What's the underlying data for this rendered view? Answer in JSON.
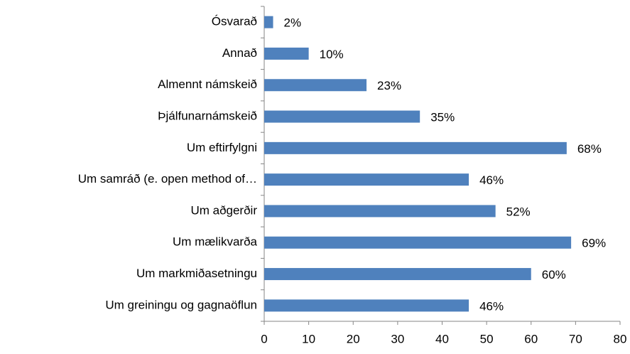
{
  "chart_data": {
    "type": "bar",
    "orientation": "horizontal",
    "categories": [
      "Ósvarað",
      "Annað",
      "Almennt námskeið",
      "Þjálfunarnámskeið",
      "Um eftirfylgni",
      "Um samráð (e. open method of…",
      "Um aðgerðir",
      "Um mælikvarða",
      "Um markmiðasetningu",
      "Um greiningu og gagnaöflun"
    ],
    "values": [
      2,
      10,
      23,
      35,
      68,
      46,
      52,
      69,
      60,
      46
    ],
    "value_labels": [
      "2%",
      "10%",
      "23%",
      "35%",
      "68%",
      "46%",
      "52%",
      "69%",
      "60%",
      "46%"
    ],
    "color": "#4f81bd",
    "xlim": [
      0,
      80
    ],
    "xticks": [
      0,
      10,
      20,
      30,
      40,
      50,
      60,
      70,
      80
    ],
    "grid": false
  }
}
